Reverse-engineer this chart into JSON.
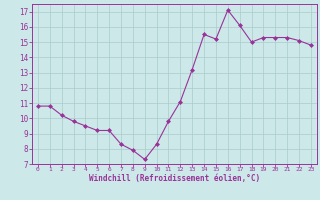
{
  "x": [
    0,
    1,
    2,
    3,
    4,
    5,
    6,
    7,
    8,
    9,
    10,
    11,
    12,
    13,
    14,
    15,
    16,
    17,
    18,
    19,
    20,
    21,
    22,
    23
  ],
  "y": [
    10.8,
    10.8,
    10.2,
    9.8,
    9.5,
    9.2,
    9.2,
    8.3,
    7.9,
    7.3,
    8.3,
    9.8,
    11.1,
    13.2,
    15.5,
    15.2,
    17.1,
    16.1,
    15.0,
    15.3,
    15.3,
    15.3,
    15.1,
    14.8
  ],
  "line_color": "#993399",
  "marker": "D",
  "marker_size": 2.0,
  "bg_color": "#cce8e8",
  "grid_color": "#aacccc",
  "xlabel": "Windchill (Refroidissement éolien,°C)",
  "xlabel_color": "#993399",
  "tick_color": "#993399",
  "ylim": [
    7,
    17.5
  ],
  "xlim": [
    -0.5,
    23.5
  ],
  "yticks": [
    7,
    8,
    9,
    10,
    11,
    12,
    13,
    14,
    15,
    16,
    17
  ],
  "xticks": [
    0,
    1,
    2,
    3,
    4,
    5,
    6,
    7,
    8,
    9,
    10,
    11,
    12,
    13,
    14,
    15,
    16,
    17,
    18,
    19,
    20,
    21,
    22,
    23
  ],
  "spine_color": "#993399",
  "linewidth": 0.8
}
